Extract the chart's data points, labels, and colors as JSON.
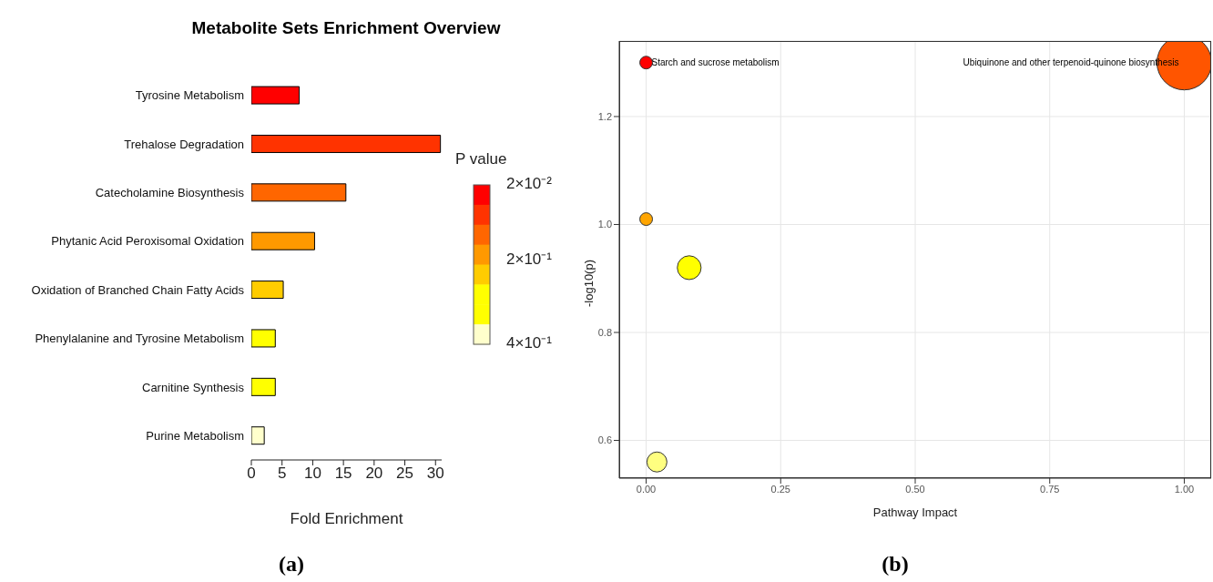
{
  "chart_data": [
    {
      "type": "bar",
      "orientation": "horizontal",
      "title": "Metabolite Sets Enrichment Overview",
      "xlabel": "Fold Enrichment",
      "categories": [
        "Tyrosine Metabolism",
        "Trehalose Degradation",
        "Catecholamine Biosynthesis",
        "Phytanic Acid Peroxisomal Oxidation",
        "Oxidation of Branched Chain Fatty Acids",
        "Phenylalanine and Tyrosine Metabolism",
        "Carnitine Synthesis",
        "Purine Metabolism"
      ],
      "values": [
        7.8,
        30.8,
        15.4,
        10.3,
        5.2,
        3.9,
        3.9,
        2.1
      ],
      "colors": [
        "#ff0000",
        "#ff3300",
        "#ff6600",
        "#ff9900",
        "#ffcc00",
        "#ffff00",
        "#ffff00",
        "#ffffcc"
      ],
      "xlim": [
        0,
        31
      ],
      "xticks": [
        0,
        5,
        10,
        15,
        20,
        25,
        30
      ],
      "grid": false,
      "legend_title": "P value",
      "clim": [
        0.4,
        0.02
      ],
      "cticks": [
        {
          "value": 0.02,
          "label": "2×10⁻²"
        },
        {
          "value": 0.2,
          "label": "2×10⁻¹"
        },
        {
          "value": 0.4,
          "label": "4×10⁻¹"
        }
      ],
      "annotations": [
        "(a)"
      ]
    },
    {
      "type": "bubble",
      "xlabel": "Pathway Impact",
      "ylabel": "-log10(p)",
      "x": [
        0,
        1,
        0,
        0.08,
        0.02
      ],
      "values": [
        1.3,
        1.3,
        1.01,
        0.92,
        0.56
      ],
      "sizes": [
        0.054,
        1,
        0.054,
        0.19,
        0.134
      ],
      "colors": [
        "#ff0000",
        "#ff5500",
        "#ffa500",
        "#ffff00",
        "#ffff80"
      ],
      "xlim": [
        -0.05,
        1.05
      ],
      "xticks": [
        {
          "value": 0,
          "label": "0.00"
        },
        {
          "value": 0.25,
          "label": "0.25"
        },
        {
          "value": 0.5,
          "label": "0.50"
        },
        {
          "value": 0.75,
          "label": "0.75"
        },
        {
          "value": 1,
          "label": "1.00"
        }
      ],
      "ylim": [
        0.53,
        1.34
      ],
      "yticks": [
        {
          "value": 0.6,
          "label": "0.6"
        },
        {
          "value": 0.8,
          "label": "0.8"
        },
        {
          "value": 1.0,
          "label": "1.0"
        },
        {
          "value": 1.2,
          "label": "1.2"
        }
      ],
      "grid": true,
      "annotations": [
        {
          "text": "Starch and sucrose metabolism",
          "x": 0,
          "y": 1.3
        },
        {
          "text": "Ubiquinone and other terpenoid-quinone biosynthesis",
          "x": 1,
          "y": 1.3
        },
        "(b)"
      ]
    }
  ]
}
